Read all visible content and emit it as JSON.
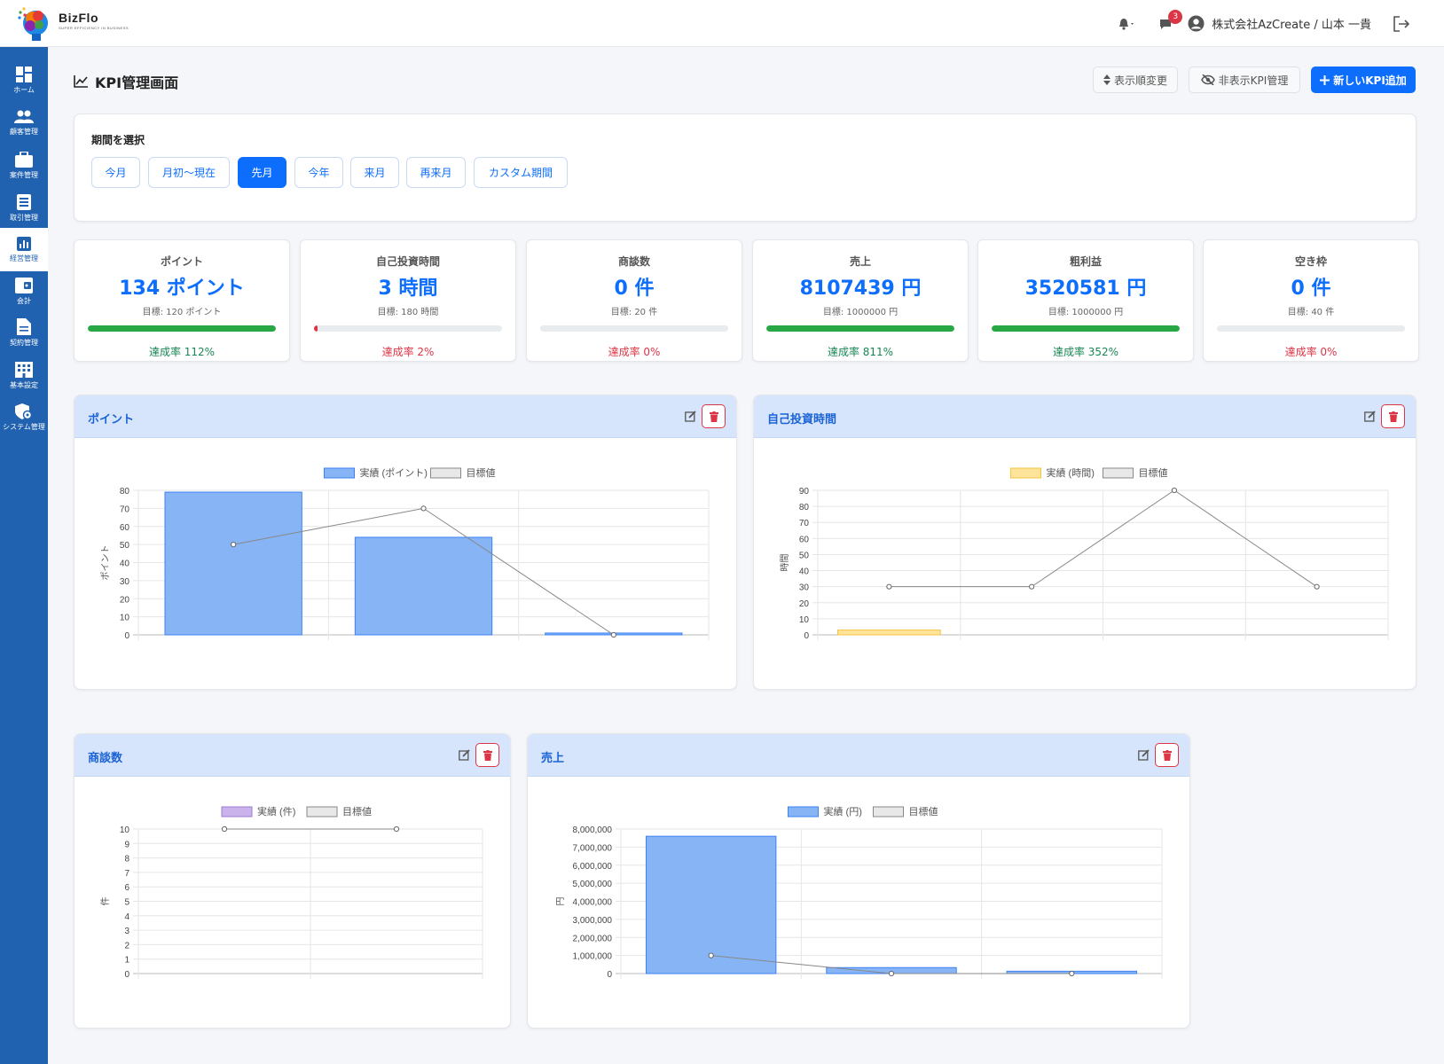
{
  "header": {
    "brand_name": "BizFlo",
    "brand_tagline": "SUPER EFFICIENCY IN BUSINESS",
    "notification_badge": "3",
    "user_label": "株式会社AzCreate / 山本 一貴"
  },
  "sidebar": {
    "items": [
      {
        "label": "ホーム",
        "icon": "dashboard-icon"
      },
      {
        "label": "顧客管理",
        "icon": "users-icon"
      },
      {
        "label": "案件管理",
        "icon": "briefcase-icon"
      },
      {
        "label": "取引管理",
        "icon": "ledger-icon"
      },
      {
        "label": "経営管理",
        "icon": "chart-icon"
      },
      {
        "label": "会計",
        "icon": "wallet-icon"
      },
      {
        "label": "契約管理",
        "icon": "document-icon"
      },
      {
        "label": "基本設定",
        "icon": "building-icon"
      },
      {
        "label": "システム管理",
        "icon": "shield-gear-icon"
      }
    ]
  },
  "page": {
    "title": "KPI管理画面",
    "reorder_button": "表示順変更",
    "hidden_button": "非表示KPI管理",
    "add_button": "新しいKPI追加"
  },
  "period": {
    "title": "期間を選択",
    "options": [
      "今月",
      "月初〜現在",
      "先月",
      "今年",
      "来月",
      "再来月",
      "カスタム期間"
    ],
    "selected": "先月"
  },
  "kpis": [
    {
      "name": "ポイント",
      "value": "134 ポイント",
      "target": "目標: 120 ポイント",
      "rate": "達成率 112%",
      "progress": 1.0,
      "status": "ok"
    },
    {
      "name": "自己投資時間",
      "value": "3 時間",
      "target": "目標: 180 時間",
      "rate": "達成率 2%",
      "progress": 0.02,
      "status": "ng"
    },
    {
      "name": "商談数",
      "value": "0 件",
      "target": "目標: 20 件",
      "rate": "達成率 0%",
      "progress": 0,
      "status": "ng"
    },
    {
      "name": "売上",
      "value": "8107439 円",
      "target": "目標: 1000000 円",
      "rate": "達成率 811%",
      "progress": 1.0,
      "status": "ok"
    },
    {
      "name": "粗利益",
      "value": "3520581 円",
      "target": "目標: 1000000 円",
      "rate": "達成率 352%",
      "progress": 1.0,
      "status": "ok"
    },
    {
      "name": "空き枠",
      "value": "0 件",
      "target": "目標: 40 件",
      "rate": "達成率 0%",
      "progress": 0,
      "status": "ng"
    }
  ],
  "colors": {
    "primary": "#0d6efd",
    "sidebar": "#2062b0",
    "success": "#28a745",
    "danger": "#dc3545"
  },
  "chart_data": [
    {
      "type": "bar",
      "title": "ポイント",
      "ylabel": "ポイント",
      "categories": [
        "",
        "",
        ""
      ],
      "series": [
        {
          "name": "実績 (ポイント)",
          "values": [
            79,
            54,
            1
          ],
          "color": "#86b4f5",
          "border": "#3b82f6"
        },
        {
          "name": "目標値",
          "values": [
            50,
            70,
            0
          ],
          "kind": "line",
          "color": "#888888"
        }
      ],
      "ylim": [
        0,
        80
      ],
      "yticks": [
        "0",
        "10",
        "20",
        "30",
        "40",
        "50",
        "60",
        "70",
        "80"
      ],
      "legend": "top"
    },
    {
      "type": "bar",
      "title": "自己投資時間",
      "ylabel": "時間",
      "categories": [
        "",
        "",
        "",
        ""
      ],
      "series": [
        {
          "name": "実績 (時間)",
          "values": [
            3,
            0,
            0,
            0
          ],
          "color": "#fde49a",
          "border": "#f5c542"
        },
        {
          "name": "目標値",
          "values": [
            30,
            30,
            90,
            30
          ],
          "kind": "line",
          "color": "#888888"
        }
      ],
      "ylim": [
        0,
        90
      ],
      "yticks": [
        "0",
        "10",
        "20",
        "30",
        "40",
        "50",
        "60",
        "70",
        "80",
        "90"
      ],
      "legend": "top"
    },
    {
      "type": "bar",
      "title": "商談数",
      "ylabel": "件",
      "categories": [
        "",
        ""
      ],
      "series": [
        {
          "name": "実績 (件)",
          "values": [
            0,
            0
          ],
          "color": "#c9b3ea",
          "border": "#9b7bd1"
        },
        {
          "name": "目標値",
          "values": [
            10,
            10
          ],
          "kind": "line",
          "color": "#888888"
        }
      ],
      "ylim": [
        0,
        10
      ],
      "yticks": [
        "0",
        "1",
        "2",
        "3",
        "4",
        "5",
        "6",
        "7",
        "8",
        "9",
        "10"
      ],
      "legend": "top"
    },
    {
      "type": "bar",
      "title": "売上",
      "ylabel": "円",
      "categories": [
        "",
        "",
        ""
      ],
      "series": [
        {
          "name": "実績 (円)",
          "values": [
            7600000,
            330000,
            130000
          ],
          "color": "#86b4f5",
          "border": "#3b82f6"
        },
        {
          "name": "目標値",
          "values": [
            1000000,
            0,
            0
          ],
          "kind": "line",
          "color": "#888888"
        }
      ],
      "ylim": [
        0,
        8000000
      ],
      "yticks": [
        "0",
        "1,000,000",
        "2,000,000",
        "3,000,000",
        "4,000,000",
        "5,000,000",
        "6,000,000",
        "7,000,000",
        "8,000,000"
      ],
      "legend": "top"
    }
  ]
}
